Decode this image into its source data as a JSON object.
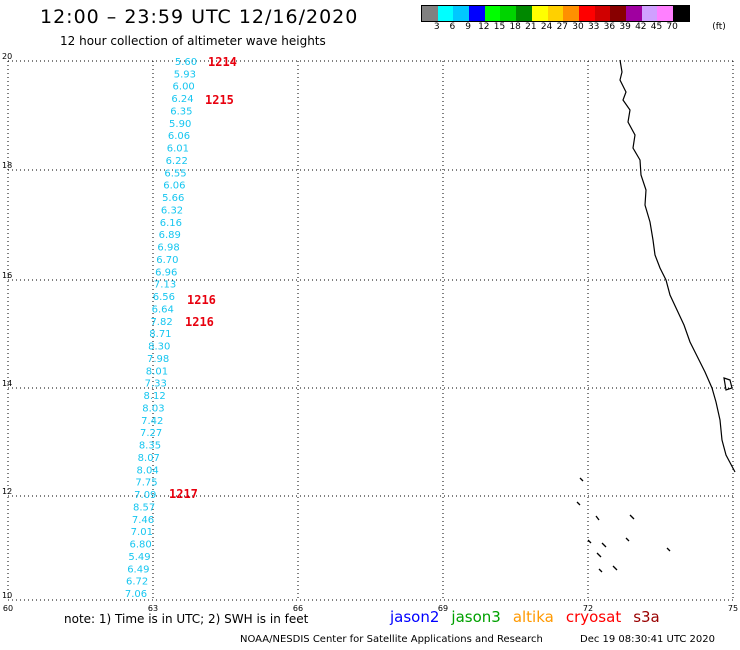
{
  "header": {
    "title": "12:00 – 23:59 UTC 12/16/2020",
    "subtitle": "12 hour collection of altimeter wave heights"
  },
  "legend": {
    "unit": "(ft)",
    "colors": [
      "#808080",
      "#00ffff",
      "#00c8ff",
      "#0000ff",
      "#00ff00",
      "#00d400",
      "#008800",
      "#ffff00",
      "#ffd000",
      "#ff9000",
      "#ff0000",
      "#d00000",
      "#880000",
      "#a000a0",
      "#d0a0ff",
      "#ff80ff",
      "#000000"
    ],
    "labels": [
      "3",
      "6",
      "9",
      "12",
      "15",
      "18",
      "21",
      "24",
      "27",
      "30",
      "33",
      "36",
      "39",
      "42",
      "45",
      "70"
    ]
  },
  "map": {
    "lon_labels": [
      "60",
      "63",
      "66",
      "69",
      "72",
      "75"
    ],
    "lat_labels": [
      "20",
      "18",
      "16",
      "14",
      "12",
      "10"
    ],
    "wave_heights": [
      "5.60",
      "5.93",
      "6.00",
      "6.24",
      "6.35",
      "5.90",
      "6.06",
      "6.01",
      "6.22",
      "6.55",
      "6.06",
      "5.66",
      "6.32",
      "6.16",
      "6.89",
      "6.98",
      "6.70",
      "6.96",
      "7.13",
      "6.56",
      "6.64",
      "7.82",
      "8.71",
      "8.30",
      "7.98",
      "8.01",
      "7.33",
      "8.12",
      "8.03",
      "7.42",
      "7.27",
      "8.35",
      "8.07",
      "8.04",
      "7.75",
      "7.09",
      "8.57",
      "7.46",
      "7.01",
      "6.80",
      "5.49",
      "6.49",
      "6.72",
      "7.06"
    ],
    "pass_labels": [
      "1214",
      "1215",
      "1216",
      "1216",
      "1217"
    ]
  },
  "footer": {
    "note": "note: 1) Time is in UTC; 2) SWH is in feet",
    "satellites": [
      {
        "name": "jason2",
        "color": "#0000ff"
      },
      {
        "name": "jason3",
        "color": "#00a000"
      },
      {
        "name": "altika",
        "color": "#ff9900"
      },
      {
        "name": "cryosat",
        "color": "#ff0000"
      },
      {
        "name": "s3a",
        "color": "#990000"
      }
    ],
    "credit": "NOAA/NESDIS Center for Satellite Applications and Research",
    "timestamp": "Dec 19 08:30:41 UTC 2020"
  }
}
